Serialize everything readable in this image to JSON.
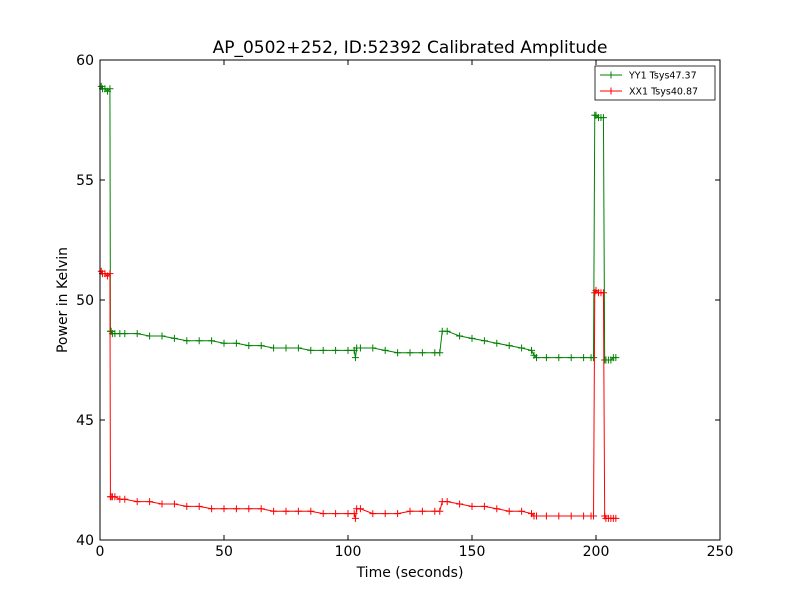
{
  "chart_data": {
    "type": "line",
    "title": "AP_0502+252, ID:52392 Calibrated Amplitude",
    "xlabel": "Time (seconds)",
    "ylabel": "Power in Kelvin",
    "xlim": [
      0,
      250
    ],
    "ylim": [
      40,
      60
    ],
    "xticks": [
      0,
      50,
      100,
      150,
      200,
      250
    ],
    "yticks": [
      40,
      45,
      50,
      55,
      60
    ],
    "xtick_labels": [
      "0",
      "50",
      "100",
      "150",
      "200",
      "250"
    ],
    "ytick_labels": [
      "40",
      "45",
      "50",
      "55",
      "60"
    ],
    "grid": false,
    "legend_position": "top-right",
    "marker": "plus",
    "series": [
      {
        "name": "YY1 Tsys47.37",
        "color": "#008000",
        "x": [
          0.5,
          1,
          2,
          3,
          4,
          4.2,
          4.5,
          5,
          6,
          8,
          10,
          15,
          20,
          25,
          30,
          35,
          40,
          45,
          50,
          55,
          60,
          65,
          70,
          75,
          80,
          85,
          90,
          95,
          100,
          102.5,
          103,
          103.5,
          105,
          110,
          115,
          120,
          125,
          130,
          135,
          137,
          138,
          140,
          145,
          150,
          155,
          160,
          165,
          170,
          174,
          175,
          176,
          180,
          185,
          190,
          195,
          198,
          199,
          199.5,
          200,
          201,
          202,
          203,
          203.5,
          204,
          205,
          206,
          207,
          208
        ],
        "y": [
          58.9,
          58.8,
          58.8,
          58.7,
          58.8,
          48.7,
          48.7,
          48.6,
          48.6,
          48.6,
          48.6,
          48.6,
          48.5,
          48.5,
          48.4,
          48.3,
          48.3,
          48.3,
          48.2,
          48.2,
          48.1,
          48.1,
          48.0,
          48.0,
          48.0,
          47.9,
          47.9,
          47.9,
          47.9,
          47.9,
          47.6,
          48.0,
          48.0,
          48.0,
          47.9,
          47.8,
          47.8,
          47.8,
          47.8,
          47.8,
          48.7,
          48.7,
          48.5,
          48.4,
          48.3,
          48.2,
          48.1,
          48.0,
          47.9,
          47.7,
          47.6,
          47.6,
          47.6,
          47.6,
          47.6,
          47.6,
          47.6,
          57.7,
          57.7,
          57.6,
          57.6,
          57.6,
          47.5,
          47.5,
          47.5,
          47.5,
          47.6,
          47.6
        ]
      },
      {
        "name": "XX1 Tsys40.87",
        "color": "#ff0000",
        "x": [
          0.5,
          1,
          2,
          3,
          4,
          4.2,
          4.5,
          5,
          6,
          8,
          10,
          15,
          20,
          25,
          30,
          35,
          40,
          45,
          50,
          55,
          60,
          65,
          70,
          75,
          80,
          85,
          90,
          95,
          100,
          102.5,
          103,
          103.5,
          105,
          110,
          115,
          120,
          125,
          130,
          135,
          137,
          138,
          140,
          145,
          150,
          155,
          160,
          165,
          170,
          174,
          175,
          176,
          180,
          185,
          190,
          195,
          198,
          199,
          199.5,
          200,
          201,
          202,
          203,
          203.5,
          204,
          205,
          206,
          207,
          208
        ],
        "y": [
          51.2,
          51.1,
          51.1,
          51.0,
          51.1,
          41.8,
          41.8,
          41.8,
          41.8,
          41.7,
          41.7,
          41.6,
          41.6,
          41.5,
          41.5,
          41.4,
          41.4,
          41.3,
          41.3,
          41.3,
          41.3,
          41.3,
          41.2,
          41.2,
          41.2,
          41.2,
          41.1,
          41.1,
          41.1,
          41.1,
          40.9,
          41.3,
          41.3,
          41.1,
          41.1,
          41.1,
          41.2,
          41.2,
          41.2,
          41.2,
          41.6,
          41.6,
          41.5,
          41.4,
          41.4,
          41.3,
          41.2,
          41.2,
          41.1,
          41.0,
          41.0,
          41.0,
          41.0,
          41.0,
          41.0,
          41.0,
          41.0,
          50.3,
          50.4,
          50.3,
          50.3,
          50.3,
          41.0,
          40.9,
          40.9,
          40.9,
          40.9,
          40.9
        ]
      }
    ]
  }
}
